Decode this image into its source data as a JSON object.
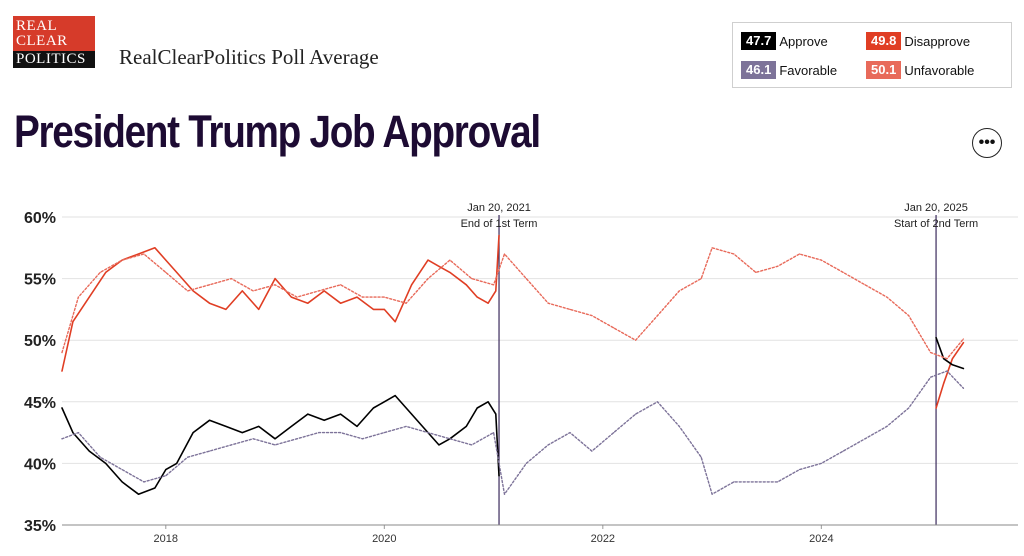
{
  "brand": {
    "logo_line1": "REAL",
    "logo_line2": "CLEAR",
    "logo_line3": "POLITICS",
    "title": "RealClearPolitics Poll Average"
  },
  "page_title": "President Trump Job Approval",
  "more_button": {
    "label": "•••",
    "icon": "more-horizontal-icon"
  },
  "legend": {
    "approve": {
      "value": "47.7",
      "label": "Approve",
      "color": "#000000"
    },
    "disapprove": {
      "value": "49.8",
      "label": "Disapprove",
      "color": "#e03e24"
    },
    "favorable": {
      "value": "46.1",
      "label": "Favorable",
      "color": "#7d7399"
    },
    "unfavorable": {
      "value": "50.1",
      "label": "Unfavorable",
      "color": "#e86a5a"
    }
  },
  "chart_data": {
    "type": "line",
    "title": "President Trump Job Approval",
    "ylim": [
      35,
      60
    ],
    "yticks": [
      35,
      40,
      45,
      50,
      55,
      60
    ],
    "ytick_labels": [
      "35%",
      "40%",
      "45%",
      "50%",
      "55%",
      "60%"
    ],
    "xlim": [
      2017.05,
      2025.8
    ],
    "xticks": [
      2018,
      2020,
      2022,
      2024
    ],
    "xtick_labels": [
      "2018",
      "2020",
      "2022",
      "2024"
    ],
    "grid": "horizontal",
    "annotations": [
      {
        "x": 2021.05,
        "line1": "Jan 20, 2021",
        "line2": "End of 1st Term"
      },
      {
        "x": 2025.05,
        "line1": "Jan 20, 2025",
        "line2": "Start of 2nd Term"
      }
    ],
    "series": [
      {
        "name": "Disapprove",
        "color": "#e03e24",
        "style": "solid",
        "x": [
          2017.05,
          2017.15,
          2017.3,
          2017.45,
          2017.6,
          2017.75,
          2017.9,
          2018.0,
          2018.1,
          2018.25,
          2018.4,
          2018.55,
          2018.7,
          2018.85,
          2019.0,
          2019.15,
          2019.3,
          2019.45,
          2019.6,
          2019.75,
          2019.9,
          2020.0,
          2020.1,
          2020.25,
          2020.4,
          2020.5,
          2020.6,
          2020.75,
          2020.85,
          2020.95,
          2021.02,
          2021.05,
          2025.05,
          2025.12,
          2025.2,
          2025.3
        ],
        "y": [
          47.5,
          51.5,
          53.5,
          55.5,
          56.5,
          57.0,
          57.5,
          56.5,
          55.5,
          54.0,
          53.0,
          52.5,
          54.0,
          52.5,
          55.0,
          53.5,
          53.0,
          54.0,
          53.0,
          53.5,
          52.5,
          52.5,
          51.5,
          54.5,
          56.5,
          56.0,
          55.5,
          54.5,
          53.5,
          53.0,
          54.0,
          58.5,
          44.5,
          46.5,
          48.5,
          49.8
        ]
      },
      {
        "name": "Approve",
        "color": "#000000",
        "style": "solid",
        "x": [
          2017.05,
          2017.15,
          2017.3,
          2017.45,
          2017.6,
          2017.75,
          2017.9,
          2018.0,
          2018.1,
          2018.25,
          2018.4,
          2018.55,
          2018.7,
          2018.85,
          2019.0,
          2019.15,
          2019.3,
          2019.45,
          2019.6,
          2019.75,
          2019.9,
          2020.0,
          2020.1,
          2020.25,
          2020.4,
          2020.5,
          2020.6,
          2020.75,
          2020.85,
          2020.95,
          2021.02,
          2021.05,
          2025.05,
          2025.12,
          2025.2,
          2025.3
        ],
        "y": [
          44.5,
          42.5,
          41.0,
          40.0,
          38.5,
          37.5,
          38.0,
          39.5,
          40.0,
          42.5,
          43.5,
          43.0,
          42.5,
          43.0,
          42.0,
          43.0,
          44.0,
          43.5,
          44.0,
          43.0,
          44.5,
          45.0,
          45.5,
          44.0,
          42.5,
          41.5,
          42.0,
          43.0,
          44.5,
          45.0,
          44.0,
          39.0,
          50.2,
          48.5,
          48.0,
          47.7
        ]
      },
      {
        "name": "Unfavorable",
        "color": "#e86a5a",
        "style": "dotted",
        "x": [
          2017.05,
          2017.2,
          2017.4,
          2017.6,
          2017.8,
          2018.0,
          2018.2,
          2018.4,
          2018.6,
          2018.8,
          2019.0,
          2019.2,
          2019.4,
          2019.6,
          2019.8,
          2020.0,
          2020.2,
          2020.4,
          2020.6,
          2020.8,
          2021.0,
          2021.1,
          2021.3,
          2021.5,
          2021.7,
          2021.9,
          2022.1,
          2022.3,
          2022.5,
          2022.7,
          2022.9,
          2023.0,
          2023.2,
          2023.4,
          2023.6,
          2023.8,
          2024.0,
          2024.2,
          2024.4,
          2024.6,
          2024.8,
          2025.0,
          2025.15,
          2025.3
        ],
        "y": [
          49.0,
          53.5,
          55.5,
          56.5,
          57.0,
          55.5,
          54.0,
          54.5,
          55.0,
          54.0,
          54.5,
          53.5,
          54.0,
          54.5,
          53.5,
          53.5,
          53.0,
          55.0,
          56.5,
          55.0,
          54.5,
          57.0,
          55.0,
          53.0,
          52.5,
          52.0,
          51.0,
          50.0,
          52.0,
          54.0,
          55.0,
          57.5,
          57.0,
          55.5,
          56.0,
          57.0,
          56.5,
          55.5,
          54.5,
          53.5,
          52.0,
          49.0,
          48.5,
          50.1
        ]
      },
      {
        "name": "Favorable",
        "color": "#7d7399",
        "style": "dotted",
        "x": [
          2017.05,
          2017.2,
          2017.4,
          2017.6,
          2017.8,
          2018.0,
          2018.2,
          2018.4,
          2018.6,
          2018.8,
          2019.0,
          2019.2,
          2019.4,
          2019.6,
          2019.8,
          2020.0,
          2020.2,
          2020.4,
          2020.6,
          2020.8,
          2021.0,
          2021.1,
          2021.3,
          2021.5,
          2021.7,
          2021.9,
          2022.1,
          2022.3,
          2022.5,
          2022.7,
          2022.9,
          2023.0,
          2023.2,
          2023.4,
          2023.6,
          2023.8,
          2024.0,
          2024.2,
          2024.4,
          2024.6,
          2024.8,
          2025.0,
          2025.15,
          2025.3
        ],
        "y": [
          42.0,
          42.5,
          40.5,
          39.5,
          38.5,
          39.0,
          40.5,
          41.0,
          41.5,
          42.0,
          41.5,
          42.0,
          42.5,
          42.5,
          42.0,
          42.5,
          43.0,
          42.5,
          42.0,
          41.5,
          42.5,
          37.5,
          40.0,
          41.5,
          42.5,
          41.0,
          42.5,
          44.0,
          45.0,
          43.0,
          40.5,
          37.5,
          38.5,
          38.5,
          38.5,
          39.5,
          40.0,
          41.0,
          42.0,
          43.0,
          44.5,
          47.0,
          47.5,
          46.1
        ]
      }
    ]
  }
}
